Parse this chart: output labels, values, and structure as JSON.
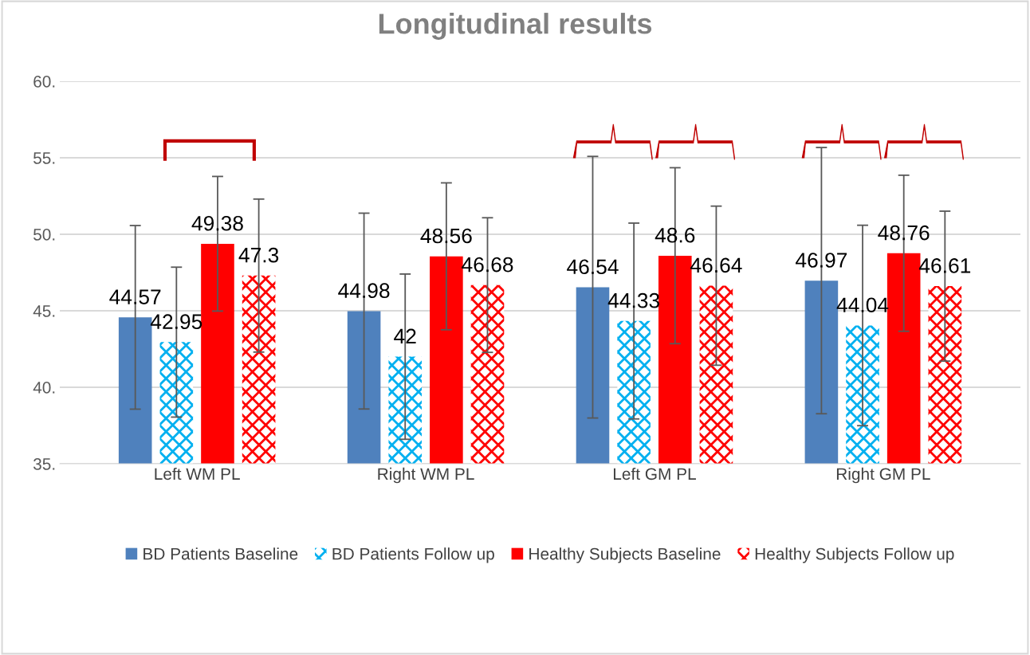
{
  "chart_data": {
    "type": "bar",
    "title": "Longitudinal results",
    "categories": [
      "Left WM PL",
      "Right WM PL",
      "Left GM PL",
      "Right GM PL"
    ],
    "series": [
      {
        "name": "BD Patients Baseline",
        "color": "#4f81bd",
        "values": [
          44.57,
          44.98,
          46.54,
          46.97
        ],
        "errors": [
          6.0,
          6.4,
          8.55,
          8.7
        ]
      },
      {
        "name": "BD Patients Follow up",
        "color": "#00b0f0",
        "values": [
          42.95,
          42,
          44.33,
          44.04
        ],
        "errors": [
          4.9,
          5.4,
          6.4,
          6.55
        ]
      },
      {
        "name": "Healthy Subjects Baseline",
        "color": "#ff0000",
        "values": [
          49.38,
          48.56,
          48.6,
          48.76
        ],
        "errors": [
          4.4,
          4.8,
          5.75,
          5.1
        ]
      },
      {
        "name": "Healthy Subjects Follow up",
        "color": "#ff0000",
        "values": [
          47.3,
          46.68,
          46.64,
          46.61
        ],
        "errors": [
          5.0,
          4.4,
          5.2,
          4.9
        ]
      }
    ],
    "ylim": [
      35,
      60
    ],
    "yticks": [
      {
        "value": 35,
        "label": "35."
      },
      {
        "value": 40,
        "label": "40."
      },
      {
        "value": 45,
        "label": "45."
      },
      {
        "value": 50,
        "label": "50."
      },
      {
        "value": 55,
        "label": "55."
      },
      {
        "value": 60,
        "label": "60."
      }
    ],
    "grid": "y",
    "legend": "bottom",
    "data_labels": true
  }
}
